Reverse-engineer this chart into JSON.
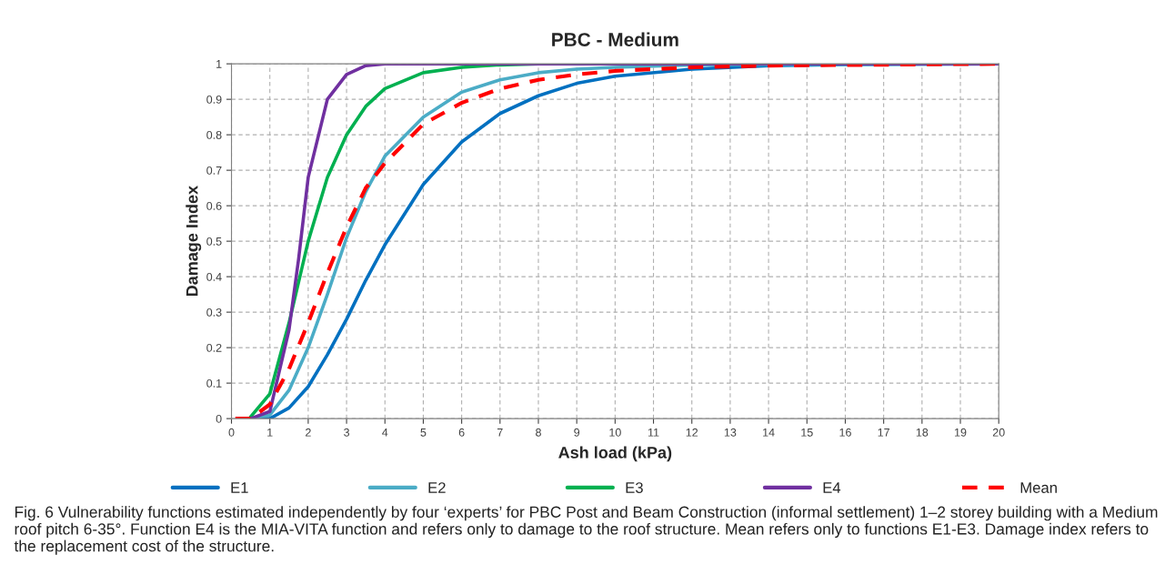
{
  "chart_data": {
    "type": "line",
    "title": "PBC - Medium",
    "xlabel": "Ash load (kPa)",
    "ylabel": "Damage Index",
    "xlim": [
      0,
      20
    ],
    "ylim": [
      0,
      1
    ],
    "xticks": [
      0,
      1,
      2,
      3,
      4,
      5,
      6,
      7,
      8,
      9,
      10,
      11,
      12,
      13,
      14,
      15,
      16,
      17,
      18,
      19,
      20
    ],
    "yticks": [
      0,
      0.1,
      0.2,
      0.3,
      0.4,
      0.5,
      0.6,
      0.7,
      0.8,
      0.9,
      1
    ],
    "grid": true,
    "legend": "bottom",
    "marker": "none",
    "series": [
      {
        "name": "E1",
        "color": "#0070c0",
        "line_style": "solid",
        "x": [
          0.5,
          1,
          1.5,
          2,
          2.5,
          3,
          3.5,
          4,
          5,
          6,
          7,
          8,
          9,
          10,
          12,
          14,
          16,
          20
        ],
        "values": [
          0,
          0,
          0.03,
          0.09,
          0.18,
          0.28,
          0.39,
          0.49,
          0.66,
          0.78,
          0.86,
          0.91,
          0.945,
          0.965,
          0.985,
          0.995,
          0.998,
          1
        ]
      },
      {
        "name": "E2",
        "color": "#4bacc6",
        "line_style": "solid",
        "x": [
          0.5,
          1,
          1.5,
          2,
          2.5,
          3,
          3.5,
          4,
          5,
          6,
          7,
          8,
          9,
          10,
          12,
          20
        ],
        "values": [
          0,
          0.01,
          0.08,
          0.2,
          0.35,
          0.51,
          0.64,
          0.74,
          0.85,
          0.92,
          0.955,
          0.975,
          0.985,
          0.99,
          0.997,
          1
        ]
      },
      {
        "name": "E3",
        "color": "#00b050",
        "line_style": "solid",
        "x": [
          0.5,
          1,
          1.5,
          2,
          2.5,
          3,
          3.5,
          4,
          5,
          6,
          7,
          8,
          20
        ],
        "values": [
          0.005,
          0.07,
          0.27,
          0.5,
          0.68,
          0.8,
          0.88,
          0.93,
          0.975,
          0.99,
          0.997,
          1,
          1
        ]
      },
      {
        "name": "E4",
        "color": "#7030a0",
        "line_style": "solid",
        "x": [
          0.5,
          1,
          1.5,
          1.75,
          2,
          2.5,
          3,
          3.5,
          4,
          20
        ],
        "values": [
          0,
          0.02,
          0.25,
          0.45,
          0.68,
          0.9,
          0.97,
          0.995,
          1,
          1
        ]
      },
      {
        "name": "Mean",
        "color": "#ff0000",
        "line_style": "dashed",
        "x": [
          0.1,
          0.5,
          1,
          1.5,
          2,
          2.5,
          3,
          3.5,
          4,
          5,
          6,
          7,
          8,
          9,
          10,
          12,
          14,
          20
        ],
        "values": [
          0,
          0,
          0.04,
          0.14,
          0.27,
          0.41,
          0.54,
          0.65,
          0.72,
          0.83,
          0.89,
          0.93,
          0.955,
          0.97,
          0.98,
          0.99,
          0.995,
          1
        ]
      }
    ],
    "annotations": [
      "Fig. 6 Vulnerability functions estimated independently by four ‘experts’ for PBC Post and Beam Construction (informal settlement) 1–2 storey building with a Medium roof pitch 6-35°. Function E4 is the MIA-VITA function and refers only to damage to the roof structure. Mean refers only to functions E1-E3. Damage index refers to the replacement cost of the structure."
    ]
  }
}
